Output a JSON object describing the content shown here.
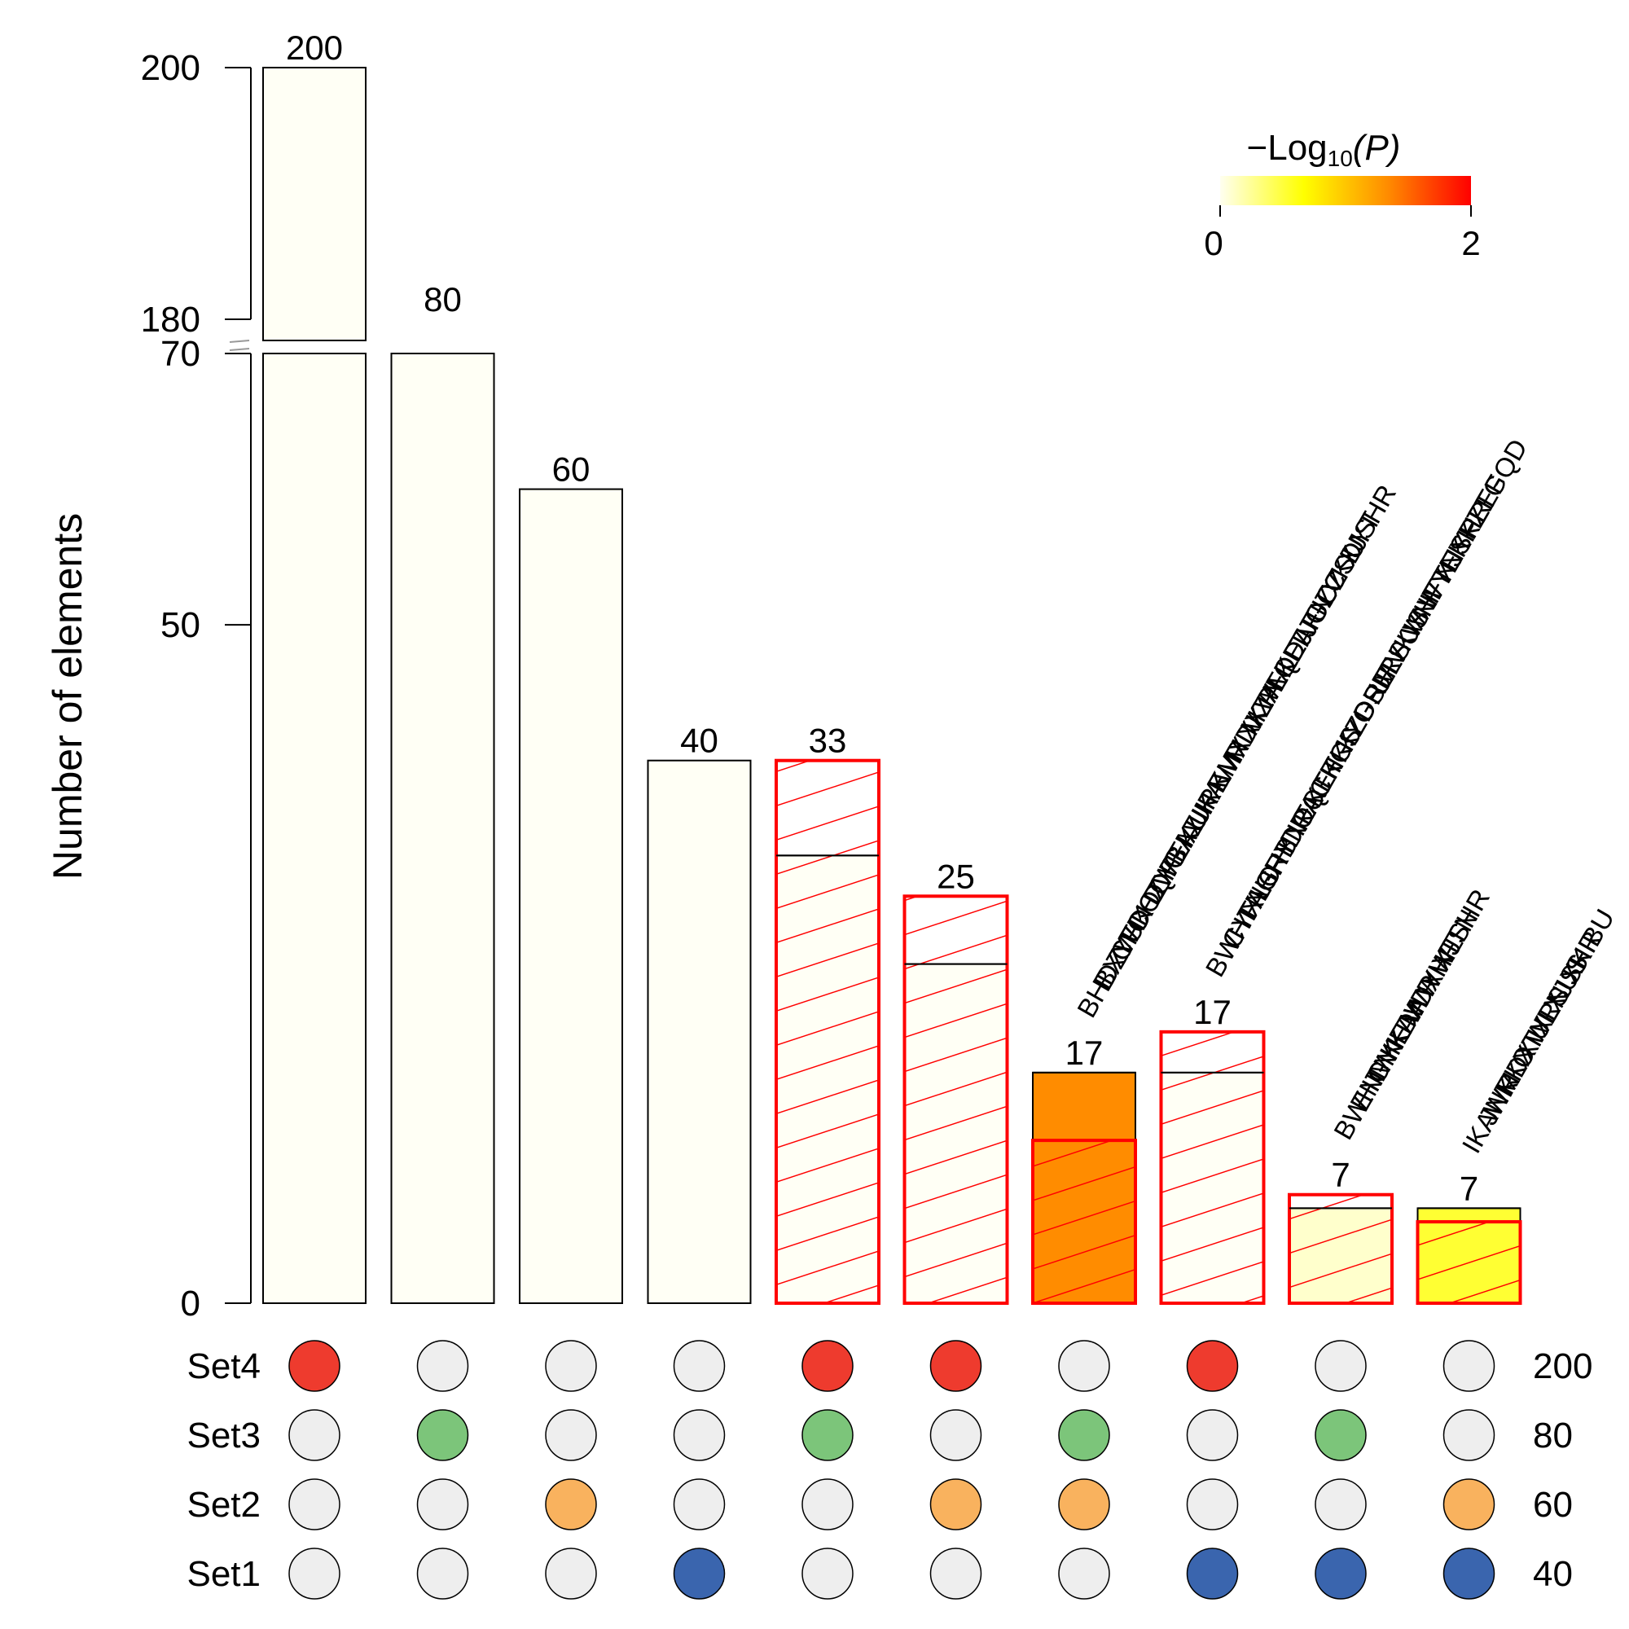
{
  "chart_data": {
    "type": "bar",
    "title": "",
    "ylabel": "Number of elements",
    "xlabel": "",
    "y_axis": {
      "lower_segment": [
        0,
        70
      ],
      "upper_segment": [
        180,
        200
      ],
      "ticks_lower": [
        0,
        50,
        70
      ],
      "ticks_upper": [
        180,
        200
      ],
      "tick_labels": [
        "0",
        "50",
        "70",
        "180",
        "200"
      ]
    },
    "sets": [
      {
        "name": "Set4",
        "size": 200,
        "size_label": "200",
        "color": "#EE3B2E"
      },
      {
        "name": "Set3",
        "size": 80,
        "size_label": "80",
        "color": "#7CC57A"
      },
      {
        "name": "Set2",
        "size": 60,
        "size_label": "60",
        "color": "#F9B25E"
      },
      {
        "name": "Set1",
        "size": 40,
        "size_label": "40",
        "color": "#3A65AE"
      }
    ],
    "inactive_dot_color": "#EEEEEE",
    "bars": [
      {
        "value": 200,
        "label": "200",
        "members": [
          "Set4"
        ],
        "fill": "#FFFFF5",
        "highlight": false
      },
      {
        "value": 80,
        "label": "80",
        "members": [
          "Set3"
        ],
        "fill": "#FFFFF5",
        "highlight": false
      },
      {
        "value": 60,
        "label": "60",
        "members": [
          "Set2"
        ],
        "fill": "#FFFFF5",
        "highlight": false
      },
      {
        "value": 40,
        "label": "40",
        "members": [
          "Set1"
        ],
        "fill": "#FFFFF5",
        "highlight": false
      },
      {
        "value": 33,
        "label": "33",
        "members": [
          "Set4",
          "Set3"
        ],
        "fill": "#FFFFF5",
        "highlight": true,
        "expected": 33,
        "observed": 40
      },
      {
        "value": 25,
        "label": "25",
        "members": [
          "Set4",
          "Set2"
        ],
        "fill": "#FFFFF5",
        "highlight": true,
        "expected": 25,
        "observed": 30
      },
      {
        "value": 17,
        "label": "17",
        "members": [
          "Set3",
          "Set2"
        ],
        "fill": "#FF8C00",
        "highlight": true,
        "expected": 17,
        "observed": 12,
        "elements": [
          "XJSHR",
          "VKDYT",
          "UCZSU",
          "TJGZC",
          "QEAFN",
          "PFKDJ",
          "MZAVL",
          "MDXWL",
          "KMXXK",
          "IKAWR",
          "IAURE",
          "FEKUH",
          "DWBAZ",
          "CHZYG",
          "CFDOQ",
          "BXYUK",
          "BHDZW"
        ]
      },
      {
        "value": 17,
        "label": "17",
        "members": [
          "Set4",
          "Set1"
        ],
        "fill": "#FFFFF5",
        "highlight": true,
        "expected": 17,
        "observed": 20,
        "elements": [
          "ZTGQD",
          "YPLEF",
          "XJSHR",
          "WYEKK",
          "WHFTN",
          "VKVNF",
          "URSUS",
          "OSELI",
          "KZDRM",
          "KGIYG",
          "KETKS",
          "IOQTH",
          "HDRAC",
          "GRBNE",
          "FAHHY",
          "CYXLO",
          "BWHTN"
        ]
      },
      {
        "value": 7,
        "label": "7",
        "members": [
          "Set3",
          "Set1"
        ],
        "fill": "#FFFFCC",
        "highlight": true,
        "expected": 7,
        "observed": 8,
        "elements": [
          "XJSHR",
          "WHFTN",
          "MDXWL",
          "IKAWR",
          "GYKDA",
          "ENMKE",
          "BWHTN"
        ]
      },
      {
        "value": 7,
        "label": "7",
        "members": [
          "Set2",
          "Set1"
        ],
        "fill": "#FFFF33",
        "highlight": true,
        "expected": 7,
        "observed": 6,
        "elements": [
          "XKIBU",
          "XJSHR",
          "URSUS",
          "OTXLN",
          "MDXWL",
          "JNKKX",
          "IKAWR"
        ]
      }
    ],
    "legend": {
      "title_prefix": "−Log",
      "title_sub": "10",
      "title_suffix": "(P)",
      "min_label": "0",
      "max_label": "2",
      "colors": [
        "#FFFFF0",
        "#FFFF00",
        "#FF8C00",
        "#FF0000"
      ],
      "position": "top-right"
    },
    "highlight_color": "#FF0000"
  }
}
